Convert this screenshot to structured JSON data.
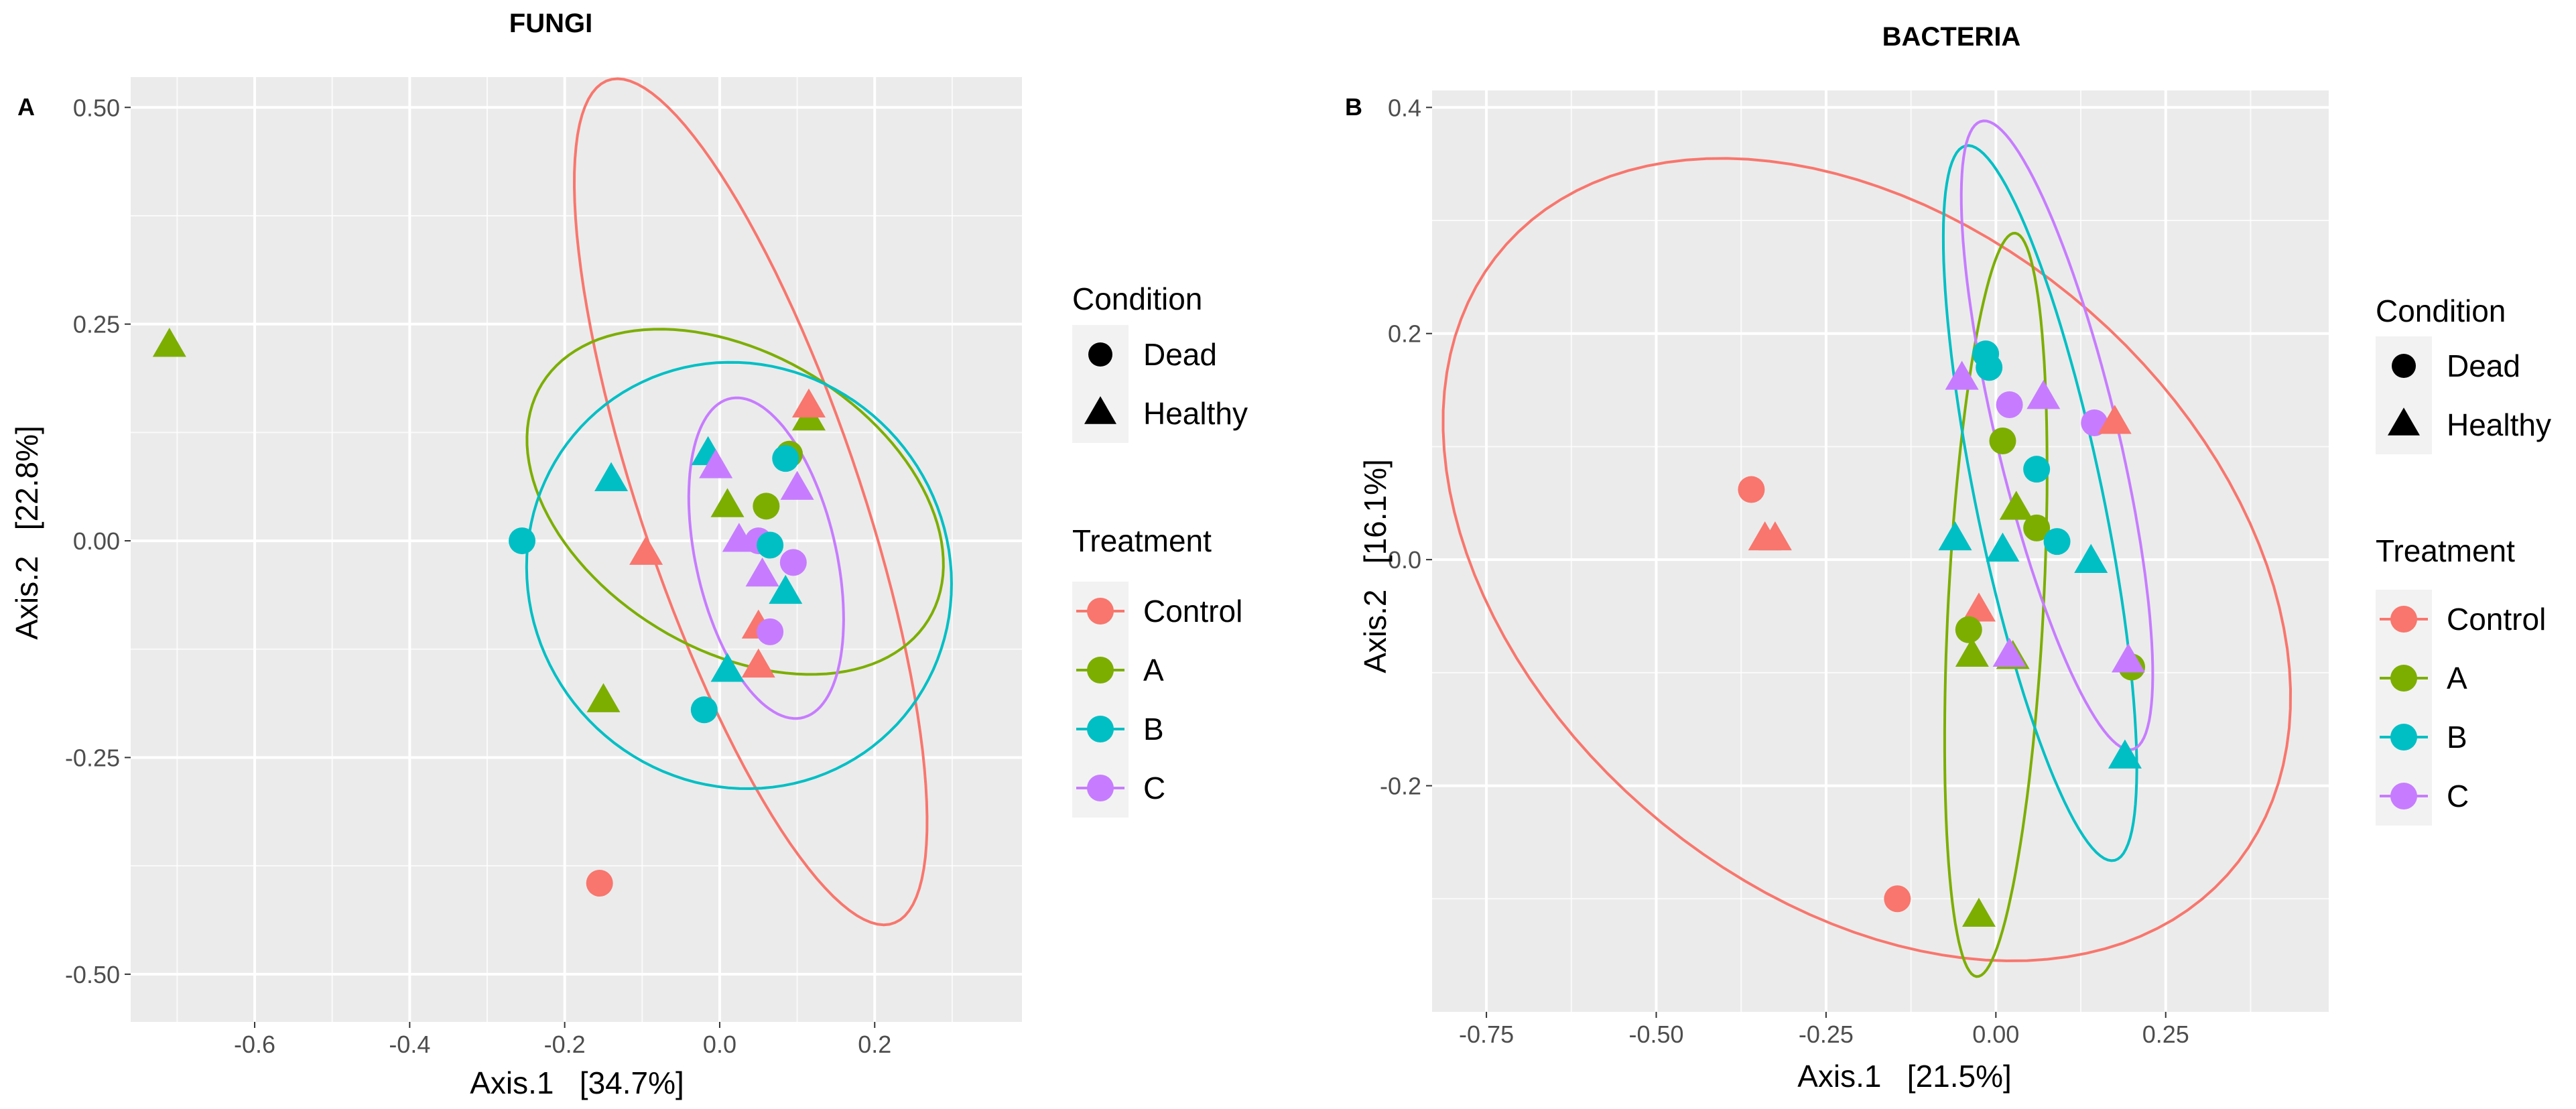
{
  "colors": {
    "panel_bg": "#EBEBEB",
    "grid": "#FFFFFF",
    "legend_key_bg": "#F2F2F2",
    "text": "#000000",
    "tick_text": "#4D4D4D",
    "Control": "#F8766D",
    "A": "#7CAE00",
    "B": "#00BFC4",
    "C": "#C77CFF"
  },
  "chart_data": [
    {
      "type": "scatter",
      "panel_label": "A",
      "title": "FUNGI",
      "xlabel": "Axis.1   [34.7%]",
      "ylabel": "Axis.2   [22.8%]",
      "xlim": [
        -0.76,
        0.39
      ],
      "ylim": [
        -0.555,
        0.535
      ],
      "xticks": [
        -0.6,
        -0.4,
        -0.2,
        0.0,
        0.2
      ],
      "xtick_labels": [
        "-0.6",
        "-0.4",
        "-0.2",
        "0.0",
        "0.2"
      ],
      "yticks": [
        0.5,
        0.25,
        0.0,
        -0.25,
        -0.5
      ],
      "ytick_labels": [
        "0.50",
        "0.25",
        "0.00",
        "-0.25",
        "-0.50"
      ],
      "legend": {
        "condition_title": "Condition",
        "condition_items": [
          {
            "label": "Dead",
            "shape": "circle"
          },
          {
            "label": "Healthy",
            "shape": "triangle"
          }
        ],
        "treatment_title": "Treatment",
        "treatment_items": [
          {
            "label": "Control",
            "group": "Control"
          },
          {
            "label": "A",
            "group": "A"
          },
          {
            "label": "B",
            "group": "B"
          },
          {
            "label": "C",
            "group": "C"
          }
        ]
      },
      "ellipses": [
        {
          "group": "Control",
          "cx": 0.04,
          "cy": 0.045,
          "rx": 0.52,
          "ry": 0.14,
          "angle_deg": -69
        },
        {
          "group": "A",
          "cx": 0.02,
          "cy": 0.045,
          "rx": 0.285,
          "ry": 0.175,
          "angle_deg": -25
        },
        {
          "group": "B",
          "cx": 0.025,
          "cy": -0.04,
          "rx": 0.275,
          "ry": 0.245,
          "angle_deg": -10
        },
        {
          "group": "C",
          "cx": 0.06,
          "cy": -0.02,
          "rx": 0.19,
          "ry": 0.09,
          "angle_deg": -75
        }
      ],
      "points": [
        {
          "group": "A",
          "shape": "triangle",
          "x": -0.71,
          "y": 0.225
        },
        {
          "group": "B",
          "shape": "circle",
          "x": -0.255,
          "y": 0.0
        },
        {
          "group": "B",
          "shape": "triangle",
          "x": -0.14,
          "y": 0.07
        },
        {
          "group": "Control",
          "shape": "triangle",
          "x": -0.095,
          "y": -0.015
        },
        {
          "group": "A",
          "shape": "triangle",
          "x": -0.15,
          "y": -0.185
        },
        {
          "group": "Control",
          "shape": "circle",
          "x": -0.155,
          "y": -0.395
        },
        {
          "group": "B",
          "shape": "circle",
          "x": -0.02,
          "y": -0.195
        },
        {
          "group": "B",
          "shape": "triangle",
          "x": -0.015,
          "y": 0.1
        },
        {
          "group": "C",
          "shape": "triangle",
          "x": -0.005,
          "y": 0.085
        },
        {
          "group": "A",
          "shape": "triangle",
          "x": 0.01,
          "y": 0.04
        },
        {
          "group": "C",
          "shape": "triangle",
          "x": 0.025,
          "y": 0.0
        },
        {
          "group": "B",
          "shape": "triangle",
          "x": 0.01,
          "y": -0.15
        },
        {
          "group": "A",
          "shape": "circle",
          "x": 0.06,
          "y": 0.04
        },
        {
          "group": "C",
          "shape": "circle",
          "x": 0.05,
          "y": 0.0
        },
        {
          "group": "B",
          "shape": "circle",
          "x": 0.065,
          "y": -0.005
        },
        {
          "group": "C",
          "shape": "triangle",
          "x": 0.055,
          "y": -0.04
        },
        {
          "group": "Control",
          "shape": "triangle",
          "x": 0.05,
          "y": -0.1
        },
        {
          "group": "C",
          "shape": "circle",
          "x": 0.065,
          "y": -0.105
        },
        {
          "group": "Control",
          "shape": "triangle",
          "x": 0.05,
          "y": -0.145
        },
        {
          "group": "B",
          "shape": "triangle",
          "x": 0.085,
          "y": -0.06
        },
        {
          "group": "C",
          "shape": "circle",
          "x": 0.095,
          "y": -0.025
        },
        {
          "group": "C",
          "shape": "triangle",
          "x": 0.1,
          "y": 0.06
        },
        {
          "group": "A",
          "shape": "circle",
          "x": 0.09,
          "y": 0.1
        },
        {
          "group": "B",
          "shape": "circle",
          "x": 0.085,
          "y": 0.095
        },
        {
          "group": "A",
          "shape": "triangle",
          "x": 0.115,
          "y": 0.14
        },
        {
          "group": "Control",
          "shape": "triangle",
          "x": 0.115,
          "y": 0.155
        }
      ]
    },
    {
      "type": "scatter",
      "panel_label": "B",
      "title": "BACTERIA",
      "xlabel": "Axis.1   [21.5%]",
      "ylabel": "Axis.2   [16.1%]",
      "xlim": [
        -0.83,
        0.49
      ],
      "ylim": [
        -0.4,
        0.415
      ],
      "xticks": [
        -0.75,
        -0.5,
        -0.25,
        0.0,
        0.25
      ],
      "xtick_labels": [
        "-0.75",
        "-0.50",
        "-0.25",
        "0.00",
        "0.25"
      ],
      "yticks": [
        0.4,
        0.2,
        0.0,
        -0.2
      ],
      "ytick_labels": [
        "0.4",
        "0.2",
        "0.0",
        "-0.2"
      ],
      "legend": {
        "condition_title": "Condition",
        "condition_items": [
          {
            "label": "Dead",
            "shape": "circle"
          },
          {
            "label": "Healthy",
            "shape": "triangle"
          }
        ],
        "treatment_title": "Treatment",
        "treatment_items": [
          {
            "label": "Control",
            "group": "Control"
          },
          {
            "label": "A",
            "group": "A"
          },
          {
            "label": "B",
            "group": "B"
          },
          {
            "label": "C",
            "group": "C"
          }
        ]
      },
      "ellipses": [
        {
          "group": "Control",
          "cx": -0.19,
          "cy": 0.0,
          "rx": 0.64,
          "ry": 0.325,
          "angle_deg": -15
        },
        {
          "group": "A",
          "cx": 0.0,
          "cy": -0.04,
          "rx": 0.33,
          "ry": 0.07,
          "angle_deg": 85
        },
        {
          "group": "B",
          "cx": 0.065,
          "cy": 0.05,
          "rx": 0.335,
          "ry": 0.09,
          "angle_deg": -70
        },
        {
          "group": "C",
          "cx": 0.09,
          "cy": 0.11,
          "rx": 0.3,
          "ry": 0.085,
          "angle_deg": -67
        }
      ],
      "points": [
        {
          "group": "Control",
          "shape": "circle",
          "x": -0.36,
          "y": 0.062
        },
        {
          "group": "Control",
          "shape": "triangle",
          "x": -0.34,
          "y": 0.018
        },
        {
          "group": "Control",
          "shape": "triangle",
          "x": -0.325,
          "y": 0.018
        },
        {
          "group": "Control",
          "shape": "circle",
          "x": -0.145,
          "y": -0.3
        },
        {
          "group": "C",
          "shape": "triangle",
          "x": -0.05,
          "y": 0.16
        },
        {
          "group": "B",
          "shape": "triangle",
          "x": -0.06,
          "y": 0.018
        },
        {
          "group": "B",
          "shape": "circle",
          "x": -0.015,
          "y": 0.182
        },
        {
          "group": "B",
          "shape": "circle",
          "x": -0.01,
          "y": 0.17
        },
        {
          "group": "C",
          "shape": "circle",
          "x": 0.02,
          "y": 0.137
        },
        {
          "group": "C",
          "shape": "triangle",
          "x": 0.07,
          "y": 0.143
        },
        {
          "group": "A",
          "shape": "circle",
          "x": 0.01,
          "y": 0.105
        },
        {
          "group": "B",
          "shape": "circle",
          "x": 0.06,
          "y": 0.08
        },
        {
          "group": "A",
          "shape": "triangle",
          "x": 0.03,
          "y": 0.045
        },
        {
          "group": "A",
          "shape": "circle",
          "x": 0.06,
          "y": 0.028
        },
        {
          "group": "B",
          "shape": "triangle",
          "x": 0.01,
          "y": 0.008
        },
        {
          "group": "B",
          "shape": "circle",
          "x": 0.09,
          "y": 0.016
        },
        {
          "group": "B",
          "shape": "triangle",
          "x": 0.14,
          "y": -0.002
        },
        {
          "group": "C",
          "shape": "circle",
          "x": 0.145,
          "y": 0.121
        },
        {
          "group": "Control",
          "shape": "triangle",
          "x": 0.175,
          "y": 0.121
        },
        {
          "group": "Control",
          "shape": "triangle",
          "x": -0.025,
          "y": -0.045
        },
        {
          "group": "A",
          "shape": "circle",
          "x": -0.04,
          "y": -0.062
        },
        {
          "group": "A",
          "shape": "triangle",
          "x": -0.035,
          "y": -0.085
        },
        {
          "group": "A",
          "shape": "triangle",
          "x": 0.025,
          "y": -0.087
        },
        {
          "group": "C",
          "shape": "triangle",
          "x": 0.02,
          "y": -0.085
        },
        {
          "group": "A",
          "shape": "circle",
          "x": 0.2,
          "y": -0.095
        },
        {
          "group": "C",
          "shape": "triangle",
          "x": 0.195,
          "y": -0.09
        },
        {
          "group": "B",
          "shape": "triangle",
          "x": 0.19,
          "y": -0.175
        },
        {
          "group": "A",
          "shape": "triangle",
          "x": -0.025,
          "y": -0.315
        }
      ]
    }
  ]
}
